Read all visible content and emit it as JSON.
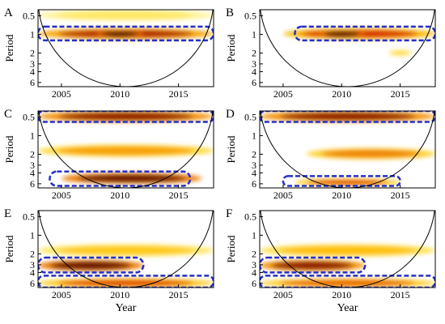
{
  "chart_data": [
    {
      "type": "heatmap",
      "label": "A",
      "xlabel": "",
      "ylabel": "Period",
      "xlim": [
        2003,
        2018
      ],
      "xticks": [
        2005,
        2010,
        2015
      ],
      "yticks": [
        "0.5",
        "1",
        "2",
        "3",
        "4",
        "6"
      ],
      "y_scale": "log2",
      "ylim": [
        0.4,
        7
      ],
      "cone_of_influence": true,
      "power_features": [
        {
          "x": [
            2003,
            2018
          ],
          "period": [
            0.8,
            1.2
          ],
          "power": 0.85
        },
        {
          "x": [
            2008,
            2012
          ],
          "period": [
            0.85,
            1.15
          ],
          "power": 1.0
        },
        {
          "x": [
            2003,
            2018
          ],
          "period": [
            0.4,
            0.6
          ],
          "power": 0.35
        }
      ],
      "significant_regions": [
        {
          "x": [
            2003,
            2018
          ],
          "period": [
            0.75,
            1.25
          ]
        }
      ]
    },
    {
      "type": "heatmap",
      "label": "B",
      "xlabel": "",
      "ylabel": "Period",
      "xlim": [
        2003,
        2018
      ],
      "xticks": [
        2005,
        2010,
        2015
      ],
      "yticks": [
        "0.5",
        "1",
        "2",
        "3",
        "4",
        "6"
      ],
      "y_scale": "log2",
      "ylim": [
        0.4,
        7
      ],
      "cone_of_influence": true,
      "power_features": [
        {
          "x": [
            2005,
            2018
          ],
          "period": [
            0.8,
            1.2
          ],
          "power": 0.8
        },
        {
          "x": [
            2008,
            2012
          ],
          "period": [
            0.85,
            1.15
          ],
          "power": 1.0
        },
        {
          "x": [
            2014,
            2016
          ],
          "period": [
            1.8,
            2.2
          ],
          "power": 0.45
        }
      ],
      "significant_regions": [
        {
          "x": [
            2006,
            2018
          ],
          "period": [
            0.75,
            1.25
          ]
        }
      ]
    },
    {
      "type": "heatmap",
      "label": "C",
      "xlabel": "",
      "ylabel": "Period",
      "xlim": [
        2003,
        2018
      ],
      "xticks": [
        2005,
        2010,
        2015
      ],
      "yticks": [
        "0.5",
        "1",
        "2",
        "3",
        "4",
        "6"
      ],
      "y_scale": "log2",
      "ylim": [
        0.4,
        7
      ],
      "cone_of_influence": true,
      "power_features": [
        {
          "x": [
            2003,
            2018
          ],
          "period": [
            0.4,
            0.6
          ],
          "power": 0.9
        },
        {
          "x": [
            2003,
            2018
          ],
          "period": [
            1.4,
            2.2
          ],
          "power": 0.6
        },
        {
          "x": [
            2005,
            2017
          ],
          "period": [
            4,
            6
          ],
          "power": 0.95
        }
      ],
      "significant_regions": [
        {
          "x": [
            2003,
            2018
          ],
          "period": [
            0.4,
            0.6
          ]
        },
        {
          "x": [
            2004,
            2016
          ],
          "period": [
            3.8,
            6.5
          ]
        }
      ]
    },
    {
      "type": "heatmap",
      "label": "D",
      "xlabel": "",
      "ylabel": "Period",
      "xlim": [
        2003,
        2018
      ],
      "xticks": [
        2005,
        2010,
        2015
      ],
      "yticks": [
        "0.5",
        "1",
        "2",
        "3",
        "4",
        "6"
      ],
      "y_scale": "log2",
      "ylim": [
        0.4,
        7
      ],
      "cone_of_influence": true,
      "power_features": [
        {
          "x": [
            2003,
            2018
          ],
          "period": [
            0.4,
            0.6
          ],
          "power": 0.9
        },
        {
          "x": [
            2007,
            2018
          ],
          "period": [
            1.6,
            2.4
          ],
          "power": 0.65
        },
        {
          "x": [
            2006,
            2015
          ],
          "period": [
            5,
            6.5
          ],
          "power": 0.75
        }
      ],
      "significant_regions": [
        {
          "x": [
            2003,
            2018
          ],
          "period": [
            0.4,
            0.6
          ]
        },
        {
          "x": [
            2005,
            2015
          ],
          "period": [
            4.5,
            6.5
          ]
        }
      ]
    },
    {
      "type": "heatmap",
      "label": "E",
      "xlabel": "Year",
      "ylabel": "Period",
      "xlim": [
        2003,
        2018
      ],
      "xticks": [
        2005,
        2010,
        2015
      ],
      "yticks": [
        "0.5",
        "1",
        "2",
        "3",
        "4",
        "6"
      ],
      "y_scale": "log2",
      "ylim": [
        0.4,
        7
      ],
      "cone_of_influence": true,
      "power_features": [
        {
          "x": [
            2003,
            2018
          ],
          "period": [
            1.4,
            2.2
          ],
          "power": 0.5
        },
        {
          "x": [
            2003,
            2012
          ],
          "period": [
            2.5,
            3.8
          ],
          "power": 0.95
        },
        {
          "x": [
            2003,
            2018
          ],
          "period": [
            5,
            7
          ],
          "power": 0.75
        }
      ],
      "significant_regions": [
        {
          "x": [
            2003,
            2012
          ],
          "period": [
            2.3,
            4
          ]
        },
        {
          "x": [
            2003,
            2018
          ],
          "period": [
            4.5,
            7
          ]
        }
      ]
    },
    {
      "type": "heatmap",
      "label": "F",
      "xlabel": "Year",
      "ylabel": "Period",
      "xlim": [
        2003,
        2018
      ],
      "xticks": [
        2005,
        2010,
        2015
      ],
      "yticks": [
        "0.5",
        "1",
        "2",
        "3",
        "4",
        "6"
      ],
      "y_scale": "log2",
      "ylim": [
        0.4,
        7
      ],
      "cone_of_influence": true,
      "power_features": [
        {
          "x": [
            2003,
            2018
          ],
          "period": [
            1.4,
            2.2
          ],
          "power": 0.55
        },
        {
          "x": [
            2003,
            2012
          ],
          "period": [
            2.5,
            3.8
          ],
          "power": 0.9
        },
        {
          "x": [
            2003,
            2018
          ],
          "period": [
            5,
            7
          ],
          "power": 0.7
        }
      ],
      "significant_regions": [
        {
          "x": [
            2003,
            2012
          ],
          "period": [
            2.3,
            4
          ]
        },
        {
          "x": [
            2003,
            2018
          ],
          "period": [
            4.5,
            7
          ]
        }
      ]
    }
  ],
  "colors": {
    "cone_line": "#000000",
    "significance_contour": "#2430c8",
    "power_low": "#ffffff",
    "power_mid": "#ffd400",
    "power_high": "#c40000",
    "power_max": "#2a0000",
    "outside_cone_tint": "#a08080"
  }
}
